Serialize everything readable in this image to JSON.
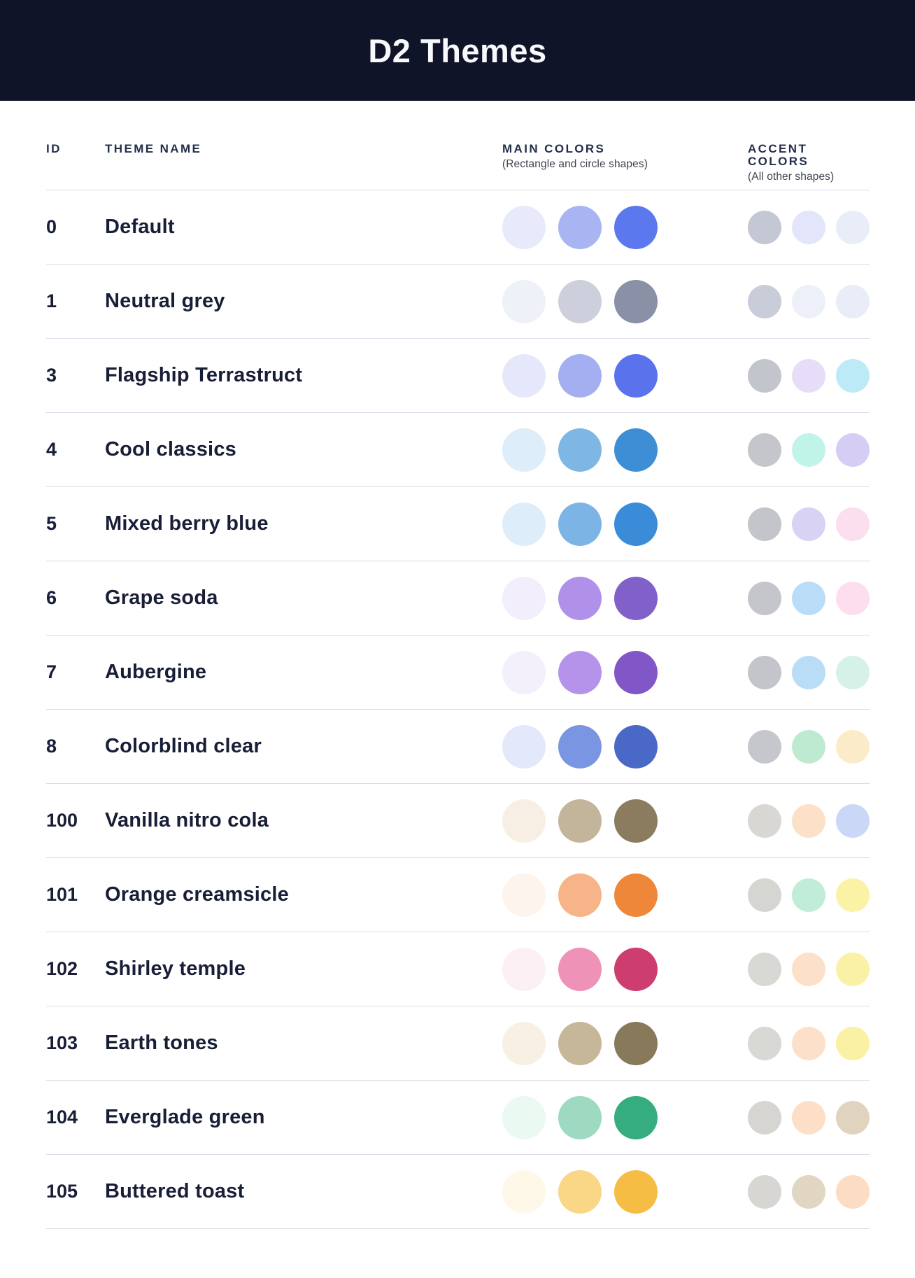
{
  "title": "D2 Themes",
  "columns": {
    "id": "ID",
    "theme_name": "THEME NAME",
    "main_label": "MAIN COLORS",
    "main_sub": "(Rectangle and circle shapes)",
    "accent_label": "ACCENT COLORS",
    "accent_sub": "(All other shapes)"
  },
  "colors": {
    "header_bg": "#101428",
    "title_text": "#F8F9FD",
    "page_bg": "#FFFFFF",
    "text": "#191E37",
    "col_header_text": "#232E4A",
    "subtitle_text": "#3F434F",
    "divider": "#DADCE6"
  },
  "themes": [
    {
      "id": "0",
      "name": "Default",
      "main": [
        "#E8EAFC",
        "#A8B5F2",
        "#5B78EE"
      ],
      "accent": [
        "#C4C7D4",
        "#E3E6FA",
        "#E9EDF8"
      ]
    },
    {
      "id": "1",
      "name": "Neutral grey",
      "main": [
        "#EEF1F8",
        "#CDD0DC",
        "#8A90A5"
      ],
      "accent": [
        "#C9CCD9",
        "#EDF0F9",
        "#E9EDF8"
      ]
    },
    {
      "id": "3",
      "name": "Flagship Terrastruct",
      "main": [
        "#E5E8FA",
        "#A3AFF1",
        "#5B72ED"
      ],
      "accent": [
        "#C3C5CC",
        "#E7DDF8",
        "#BCEAF6"
      ]
    },
    {
      "id": "4",
      "name": "Cool classics",
      "main": [
        "#DDEEFA",
        "#7EB6E4",
        "#3D8ED5"
      ],
      "accent": [
        "#C5C6CC",
        "#C1F4E9",
        "#D6CDF4"
      ]
    },
    {
      "id": "5",
      "name": "Mixed berry blue",
      "main": [
        "#DDEDFA",
        "#7CB5E5",
        "#3B8CD8"
      ],
      "accent": [
        "#C4C5CB",
        "#D8D2F5",
        "#FCDFEE"
      ]
    },
    {
      "id": "6",
      "name": "Grape soda",
      "main": [
        "#F3EEFB",
        "#B190E9",
        "#8160C9"
      ],
      "accent": [
        "#C5C6CC",
        "#BADCF6",
        "#FCDEEE"
      ]
    },
    {
      "id": "7",
      "name": "Aubergine",
      "main": [
        "#F3EFFB",
        "#B593EA",
        "#8157C7"
      ],
      "accent": [
        "#C4C5CB",
        "#B9DCF7",
        "#D6F1E8"
      ]
    },
    {
      "id": "8",
      "name": "Colorblind clear",
      "main": [
        "#E3E8FA",
        "#7A96E2",
        "#4A69C6"
      ],
      "accent": [
        "#C6C7CD",
        "#BFEAD2",
        "#FCEBC9"
      ]
    },
    {
      "id": "100",
      "name": "Vanilla nitro cola",
      "main": [
        "#F8EFE4",
        "#C3B59B",
        "#8B7C5F"
      ],
      "accent": [
        "#D8D7D4",
        "#FDE0C8",
        "#CBD7F7"
      ]
    },
    {
      "id": "101",
      "name": "Orange creamsicle",
      "main": [
        "#FEF4EE",
        "#F7B488",
        "#EF873A"
      ],
      "accent": [
        "#D5D5D2",
        "#C1ECD8",
        "#FBF2A5"
      ]
    },
    {
      "id": "102",
      "name": "Shirley temple",
      "main": [
        "#FDF0F5",
        "#EE93B7",
        "#CD3D6F"
      ],
      "accent": [
        "#D8D8D5",
        "#FDE0C9",
        "#FBF1A6"
      ]
    },
    {
      "id": "103",
      "name": "Earth tones",
      "main": [
        "#F8F0E3",
        "#C7B799",
        "#88795B"
      ],
      "accent": [
        "#D8D8D5",
        "#FDE0C9",
        "#FBF1A4"
      ]
    },
    {
      "id": "104",
      "name": "Everglade green",
      "main": [
        "#EAFAF3",
        "#9DDAC1",
        "#35AD7E"
      ],
      "accent": [
        "#D6D5D2",
        "#FCDFC6",
        "#E0D4BF"
      ]
    },
    {
      "id": "105",
      "name": "Buttered toast",
      "main": [
        "#FEF8E8",
        "#FAD687",
        "#F6BD45"
      ],
      "accent": [
        "#D7D6D3",
        "#E1D6C1",
        "#FCDCC2"
      ]
    }
  ]
}
